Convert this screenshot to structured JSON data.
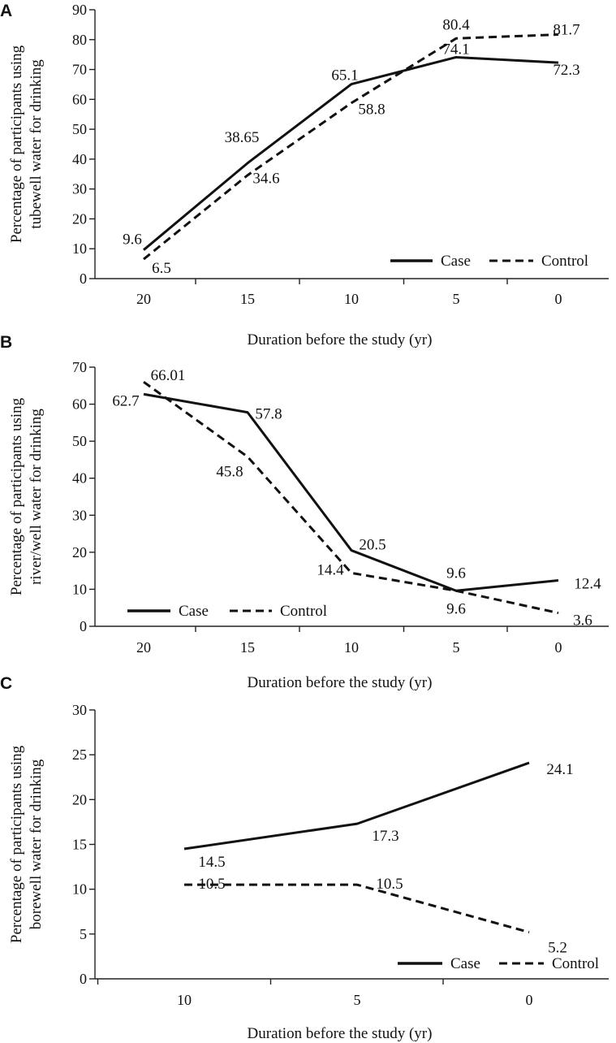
{
  "chart_data": [
    {
      "type": "line",
      "panel": "A",
      "title": "",
      "xlabel": "Duration before the study (yr)",
      "ylabel_lines": [
        "Percentage of participants using",
        "tubewell water for drinking"
      ],
      "categories": [
        "20",
        "15",
        "10",
        "5",
        "0"
      ],
      "ylim": [
        0,
        90
      ],
      "yticks": [
        0,
        10,
        20,
        30,
        40,
        50,
        60,
        70,
        80,
        90
      ],
      "legend_position": "bottom-right",
      "series": [
        {
          "name": "Case",
          "style": "solid",
          "values": [
            9.6,
            38.65,
            65.1,
            74.1,
            72.3
          ],
          "labels": [
            "9.6",
            "38.65",
            "65.1",
            "74.1",
            "72.3"
          ]
        },
        {
          "name": "Control",
          "style": "dashed",
          "values": [
            6.5,
            34.6,
            58.8,
            80.4,
            81.7
          ],
          "labels": [
            "6.5",
            "34.6",
            "58.8",
            "80.4",
            "81.7"
          ]
        }
      ]
    },
    {
      "type": "line",
      "panel": "B",
      "title": "",
      "xlabel": "Duration before the study (yr)",
      "ylabel_lines": [
        "Percentage of participants using",
        "river/well water for drinking"
      ],
      "categories": [
        "20",
        "15",
        "10",
        "5",
        "0"
      ],
      "ylim": [
        0,
        70
      ],
      "yticks": [
        0,
        10,
        20,
        30,
        40,
        50,
        60,
        70
      ],
      "legend_position": "bottom-left",
      "series": [
        {
          "name": "Case",
          "style": "solid",
          "values": [
            62.7,
            57.8,
            20.5,
            9.6,
            12.4
          ],
          "labels": [
            "62.7",
            "57.8",
            "20.5",
            "9.6",
            "12.4"
          ]
        },
        {
          "name": "Control",
          "style": "dashed",
          "values": [
            66.01,
            45.8,
            14.4,
            9.6,
            3.6
          ],
          "labels": [
            "66.01",
            "45.8",
            "14.4",
            "9.6",
            "3.6"
          ]
        }
      ]
    },
    {
      "type": "line",
      "panel": "C",
      "title": "",
      "xlabel": "Duration before the study (yr)",
      "ylabel_lines": [
        "Percentage of participants using",
        "borewell water for drinking"
      ],
      "categories": [
        "10",
        "5",
        "0"
      ],
      "ylim": [
        0,
        30
      ],
      "yticks": [
        0,
        5,
        10,
        15,
        20,
        25,
        30
      ],
      "legend_position": "bottom-right",
      "series": [
        {
          "name": "Case",
          "style": "solid",
          "values": [
            14.5,
            17.3,
            24.1
          ],
          "labels": [
            "14.5",
            "17.3",
            "24.1"
          ]
        },
        {
          "name": "Control",
          "style": "dashed",
          "values": [
            10.5,
            10.5,
            5.2
          ],
          "labels": [
            "10.5",
            "10.5",
            "5.2"
          ]
        }
      ]
    }
  ]
}
